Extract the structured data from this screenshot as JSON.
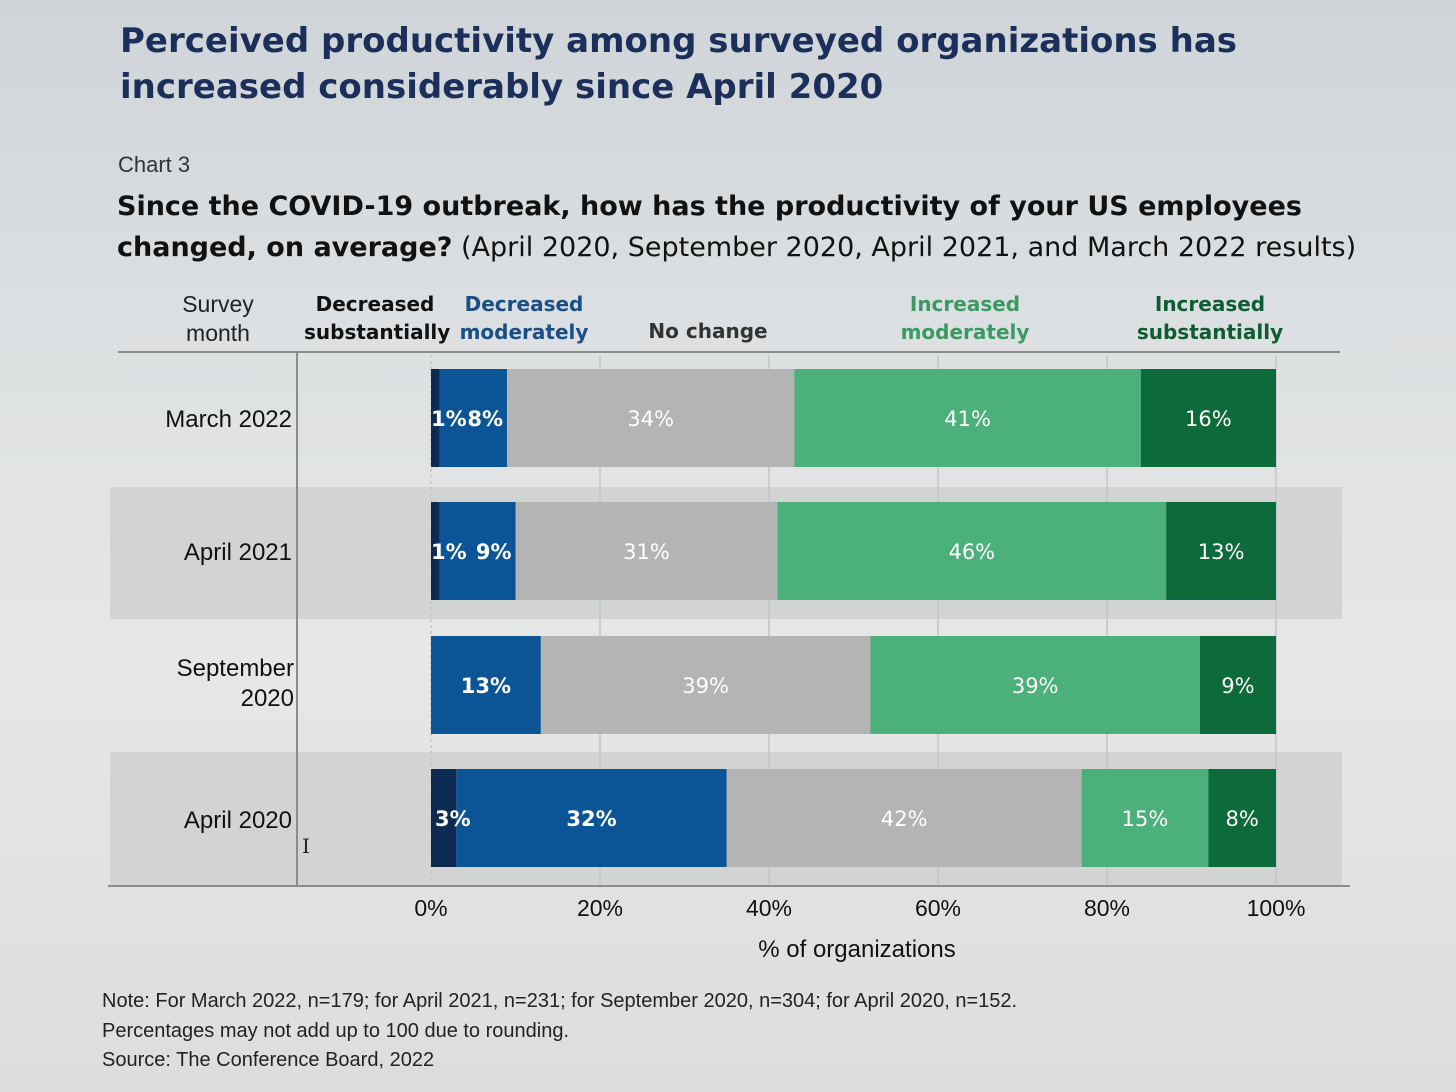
{
  "headline": {
    "line1": "Perceived productivity among surveyed organizations has",
    "line2": "increased considerably since April 2020"
  },
  "chart_number": "Chart 3",
  "question": {
    "bold": "Since the COVID-19 outbreak, how has the productivity of your US employees changed, on average?",
    "normal": " (April 2020, September 2020, April 2021, and March 2022 results)"
  },
  "column_headers": {
    "survey_month": "Survey month",
    "decreased_substantially": "Decreased substantially",
    "decreased_moderately": "Decreased moderately",
    "no_change": "No change",
    "increased_moderately": "Increased moderately",
    "increased_substantially": "Increased substantially"
  },
  "colors": {
    "decreased_substantially": "#0c2a52",
    "decreased_moderately": "#0b5597",
    "no_change": "#b4b4b4",
    "increased_moderately": "#4bb07a",
    "increased_substantially": "#0d6a3a",
    "headline": "#1b2f5a",
    "header_blue": "#1a4e86",
    "header_green": "#3a9a62",
    "header_darkgreen": "#0f5c33"
  },
  "chart_data": {
    "type": "bar",
    "orientation": "horizontal",
    "stacked": true,
    "categories": [
      "March 2022",
      "April 2021",
      "September 2020",
      "April 2020"
    ],
    "series": [
      {
        "name": "Decreased substantially",
        "values": [
          1,
          1,
          0,
          3
        ],
        "labels": [
          "1%",
          "1%",
          "",
          "3%"
        ]
      },
      {
        "name": "Decreased moderately",
        "values": [
          8,
          9,
          13,
          32
        ],
        "labels": [
          "8%",
          "9%",
          "13%",
          "32%"
        ]
      },
      {
        "name": "No change",
        "values": [
          34,
          31,
          39,
          42
        ],
        "labels": [
          "34%",
          "31%",
          "39%",
          "42%"
        ]
      },
      {
        "name": "Increased moderately",
        "values": [
          41,
          46,
          39,
          15
        ],
        "labels": [
          "41%",
          "46%",
          "39%",
          "15%"
        ]
      },
      {
        "name": "Increased substantially",
        "values": [
          16,
          13,
          9,
          8
        ],
        "labels": [
          "16%",
          "13%",
          "9%",
          "8%"
        ]
      }
    ],
    "xlabel": "% of organizations",
    "xlim": [
      0,
      100
    ],
    "xticks": [
      "0%",
      "20%",
      "40%",
      "60%",
      "80%",
      "100%"
    ],
    "grid": true
  },
  "notes": [
    "Note: For March 2022, n=179; for April 2021, n=231; for September 2020, n=304; for April 2020, n=152.",
    "Percentages may not add up to 100 due to rounding.",
    "Source: The Conference Board, 2022"
  ]
}
